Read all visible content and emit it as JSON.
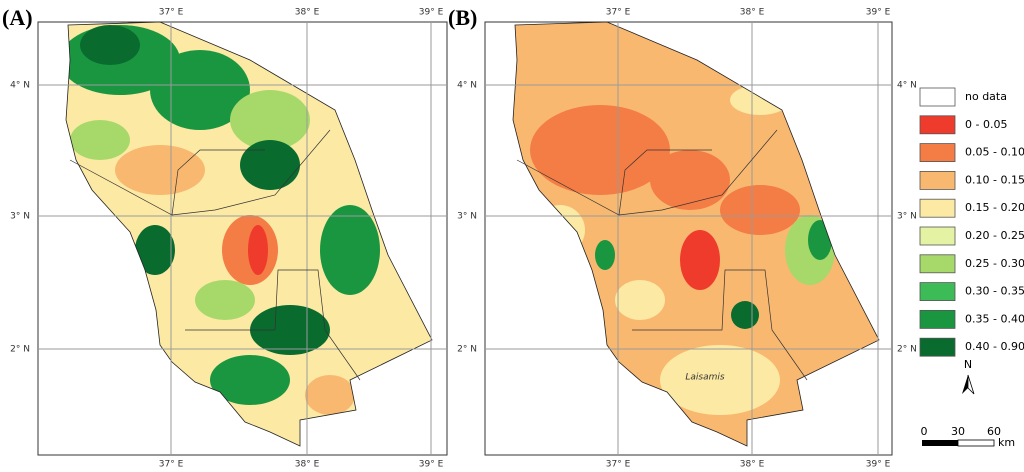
{
  "panels": [
    {
      "label": "(A)"
    },
    {
      "label": "(B)",
      "place_label": "Laisamis"
    }
  ],
  "x_ticks": [
    "37° E",
    "38° E",
    "39° E"
  ],
  "y_ticks": [
    "4° N",
    "3° N",
    "2° N"
  ],
  "legend": [
    {
      "label": "no data",
      "color": "#ffffff"
    },
    {
      "label": "0 - 0.05",
      "color": "#ef3b2c"
    },
    {
      "label": "0.05 - 0.10",
      "color": "#f47c45"
    },
    {
      "label": "0.10 - 0.15",
      "color": "#f9b870"
    },
    {
      "label": "0.15 - 0.20",
      "color": "#fce9a4"
    },
    {
      "label": "0.20 - 0.25",
      "color": "#e3f2a3"
    },
    {
      "label": "0.25 - 0.30",
      "color": "#a6d96a"
    },
    {
      "label": "0.30 - 0.35",
      "color": "#3cbb56"
    },
    {
      "label": "0.35 - 0.40",
      "color": "#1a9641"
    },
    {
      "label": "0.40 - 0.90",
      "color": "#0a6b2f"
    }
  ],
  "north": "N",
  "scale": {
    "ticks": [
      "0",
      "30",
      "60"
    ],
    "unit": "km"
  }
}
